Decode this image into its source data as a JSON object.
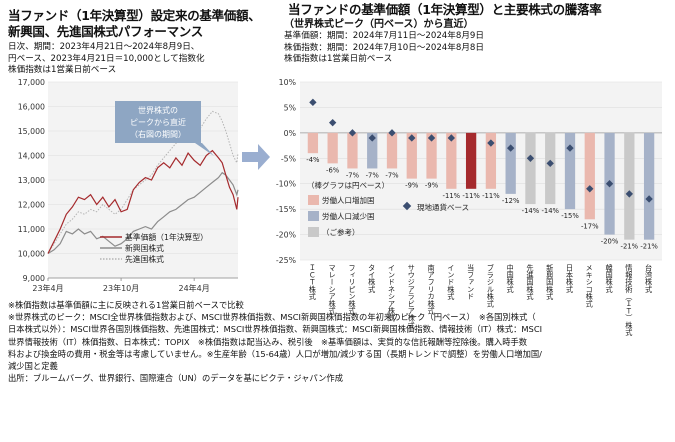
{
  "left": {
    "title_line1": "当ファンド（1年決算型）設定来の基準価額、",
    "title_line2": "新興国、先進国株式パフォーマンス",
    "sub_line1": "日次、期間：2023年4月21日～2024年8月9日、",
    "sub_line2": "円ベース、2023年4月21日＝10,000として指数化",
    "sub_line3": "株価指数は1営業日前ベース",
    "callout_line1": "世界株式の",
    "callout_line2": "ピークから直近",
    "callout_line3": "（右図の期間）"
  },
  "right": {
    "title_line1": "当ファンドの基準価額（1年決算型）と主要株式の騰落率",
    "title_line2": "（世界株式ピーク（円ベース）から直近）",
    "sub_line1": "基準価額：期間：2024年7月11日～2024年8月9日",
    "sub_line2": "株価指数：期間：2024年7月10日～2024年8月8日",
    "sub_line3": "株価指数は1営業日前ベース",
    "legend_title": "（棒グラフは円ベース）",
    "legend_items": [
      "労働人口増加国",
      "労働人口減少国",
      "（ご参考）"
    ],
    "legend_diamond": "現地通貨ベース"
  },
  "notes": {
    "line1": "※株価指数は基準価額に主に反映される1営業日前ベースで比較",
    "line2": "※世界株式のピーク：MSCI全世界株価指数および、MSCI世界株価指数、MSCI新興国株価指数の年初来のピーク（円ベース）　※各国別株式（",
    "line3": "日本株式以外）：MSCI世界各国別株価指数、先進国株式：MSCI世界株価指数、新興国株式：MSCI新興国株価指数、情報技術（IT）株式：MSCI",
    "line4": "世界情報技術（IT）株価指数、日本株式：TOPIX　※株価指数は配当込み、税引後　※基準価額は、実質的な信託報酬等控除後。購入時手数",
    "line5": "料および換金時の費用・税金等は考慮していません。※生産年齢（15-64歳）人口が増加/減少する国（長期トレンドで調整）を労働人口増加国/",
    "line6": "減少国と定義",
    "line7": "出所：ブルームバーグ、世界銀行、国際連合（UN）のデータを基にピクテ・ジャパン作成"
  },
  "colors": {
    "fund": "#a52a2d",
    "emerging": "#8c8c8c",
    "developed": "#b4b4b4",
    "increase": "#eab8ae",
    "decrease": "#a6b2c8",
    "reference": "#c9c9c9",
    "diamond": "#3b4e70",
    "callout": "#8ea6c3",
    "arrow": "#9aaed0"
  },
  "chart_data": [
    {
      "type": "line",
      "x_ticks": [
        "23年4月",
        "23年10月",
        "24年4月"
      ],
      "ylim": [
        9000,
        17000
      ],
      "y_ticks": [
        9000,
        10000,
        11000,
        12000,
        13000,
        14000,
        15000,
        16000,
        17000
      ],
      "y_tick_labels": [
        "9,000",
        "10,000",
        "11,000",
        "12,000",
        "13,000",
        "14,000",
        "15,000",
        "16,000",
        "17,000"
      ],
      "x_month_offset": [
        0,
        6,
        12
      ],
      "series": [
        {
          "name": "基準価額（1年決算型）",
          "months": [
            0,
            0.5,
            1,
            1.5,
            2,
            2.5,
            3,
            3.5,
            4,
            4.5,
            5,
            5.5,
            6,
            6.5,
            7,
            7.5,
            8,
            8.5,
            9,
            9.5,
            10,
            10.5,
            11,
            11.5,
            12,
            12.5,
            13,
            13.5,
            14,
            14.3,
            14.6,
            14.9,
            15.2,
            15.5,
            15.6
          ],
          "values": [
            10000,
            10500,
            11000,
            11600,
            11900,
            12300,
            12200,
            12400,
            12000,
            12300,
            11900,
            12200,
            11700,
            11800,
            12600,
            12900,
            13100,
            13000,
            13500,
            13700,
            13500,
            13900,
            13600,
            14100,
            13800,
            13600,
            14000,
            14200,
            13900,
            13700,
            13200,
            12700,
            12400,
            11800,
            12300
          ]
        },
        {
          "name": "新興国株式",
          "months": [
            0,
            0.5,
            1,
            1.5,
            2,
            2.5,
            3,
            3.5,
            4,
            4.5,
            5,
            5.5,
            6,
            6.5,
            7,
            7.5,
            8,
            8.5,
            9,
            9.5,
            10,
            10.5,
            11,
            11.5,
            12,
            12.5,
            13,
            13.5,
            14,
            14.3,
            14.6,
            14.9,
            15.2,
            15.5,
            15.6
          ],
          "values": [
            10000,
            10150,
            10400,
            10900,
            10800,
            11000,
            10800,
            10900,
            10600,
            10700,
            10500,
            10300,
            10400,
            10600,
            10900,
            11000,
            11100,
            11000,
            11300,
            11500,
            11700,
            11800,
            12000,
            12200,
            12300,
            12500,
            12700,
            12900,
            13100,
            13300,
            13200,
            13000,
            12800,
            12400,
            12600
          ]
        },
        {
          "name": "先進国株式",
          "months": [
            0,
            0.5,
            1,
            1.5,
            2,
            2.5,
            3,
            3.5,
            4,
            4.5,
            5,
            5.5,
            6,
            6.5,
            7,
            7.5,
            8,
            8.5,
            9,
            9.5,
            10,
            10.5,
            11,
            11.5,
            12,
            12.5,
            13,
            13.5,
            14,
            14.3,
            14.6,
            14.9,
            15.2,
            15.5,
            15.6
          ],
          "values": [
            10000,
            10400,
            10800,
            11200,
            11400,
            11700,
            11600,
            11800,
            11700,
            12000,
            11800,
            11600,
            11800,
            12200,
            12600,
            12800,
            13000,
            13200,
            13600,
            13900,
            14200,
            14500,
            14600,
            15000,
            14900,
            15100,
            15500,
            15800,
            15700,
            15400,
            15000,
            14500,
            14000,
            13700,
            14100
          ]
        }
      ]
    },
    {
      "type": "bar",
      "categories": [
        "ＩＣＴ株式",
        "マレーシア株式",
        "フィリピン株式",
        "タイ株式",
        "インドネシア株式",
        "サウジアラビア株式",
        "南アフリカ株式",
        "インド株式",
        "当ファンド",
        "ブラジル株式",
        "中国株式",
        "先進国株式",
        "新興国株式",
        "日本株式",
        "メキシコ株式",
        "韓国株式",
        "情報技術（ＩＴ）株式",
        "台湾株式"
      ],
      "values": [
        -4,
        -6,
        -7,
        -7,
        -7,
        -9,
        -9,
        -11,
        -11,
        -11,
        -12,
        -14,
        -14,
        -15,
        -17,
        -20,
        -21,
        -21
      ],
      "value_labels": [
        "-4%",
        "-6%",
        "-7%",
        "-7%",
        "-7%",
        "-9%",
        "-9%",
        "-11%",
        "-11%",
        "-11%",
        "-12%",
        "-14%",
        "-14%",
        "-15%",
        "-17%",
        "-20%",
        "-21%",
        "-21%"
      ],
      "groups": [
        "increase",
        "increase",
        "increase",
        "decrease",
        "increase",
        "increase",
        "increase",
        "increase",
        "fund",
        "increase",
        "decrease",
        "reference",
        "reference",
        "decrease",
        "increase",
        "decrease",
        "reference",
        "decrease"
      ],
      "local_currency": [
        6,
        2,
        0,
        -1,
        0,
        -1,
        -1,
        -1,
        null,
        -2,
        -3,
        -5,
        -6,
        -3,
        -11,
        -10,
        -12,
        -13
      ],
      "ylim": [
        -25,
        10
      ],
      "y_ticks": [
        10,
        5,
        0,
        -5,
        -10,
        -15,
        -20,
        -25
      ],
      "y_tick_labels": [
        "10%",
        "5%",
        "0%",
        "-5%",
        "-10%",
        "-15%",
        "-20%",
        "-25%"
      ]
    }
  ]
}
